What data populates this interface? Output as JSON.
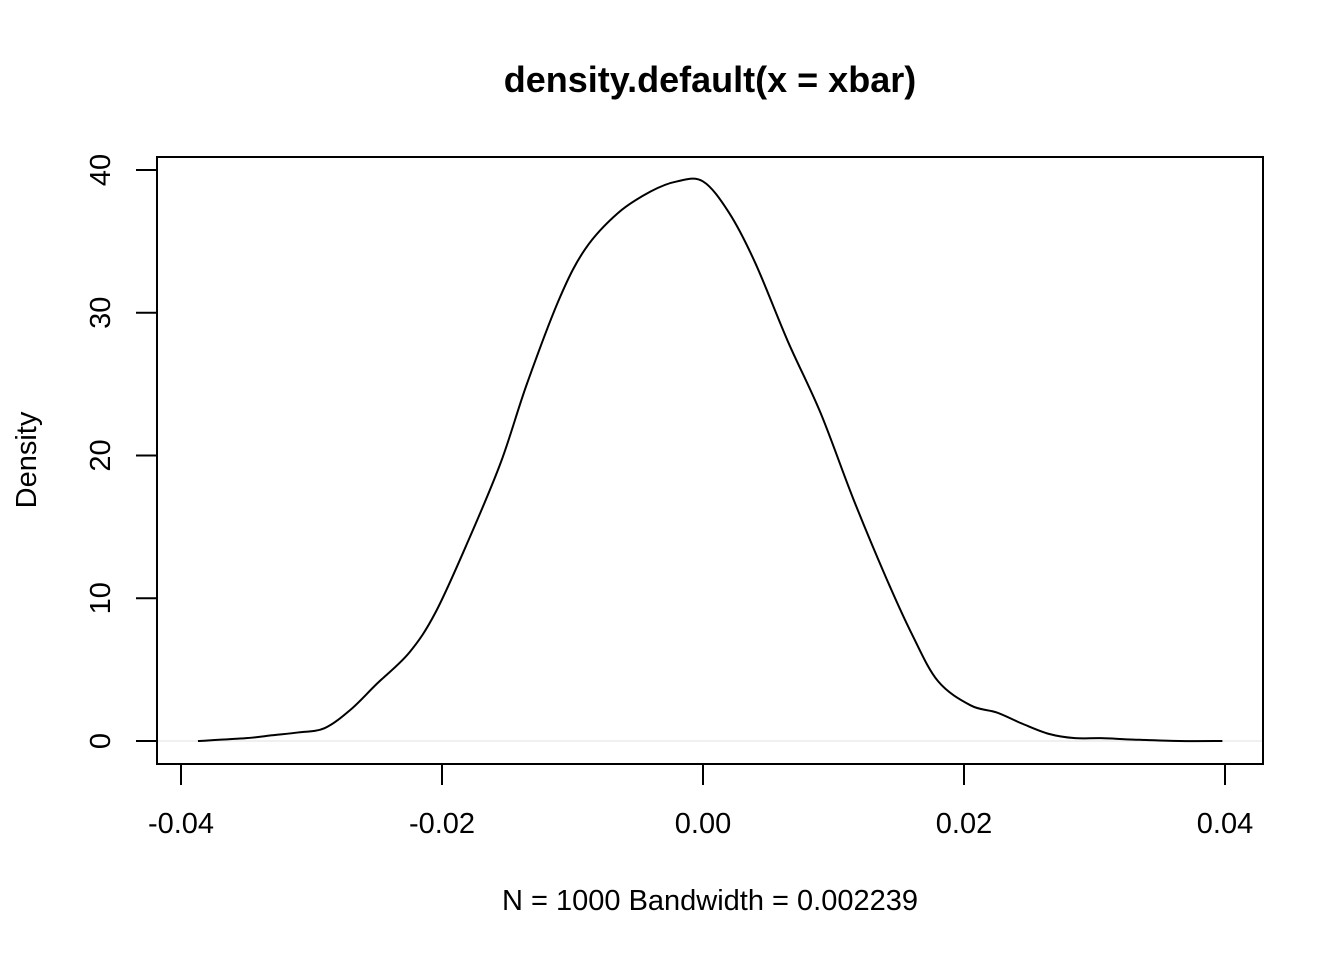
{
  "chart_data": {
    "type": "line",
    "title": "density.default(x = xbar)",
    "xlabel": "N = 1000   Bandwidth = 0.002239",
    "ylabel": "Density",
    "xlim": [
      -0.04,
      0.04
    ],
    "ylim": [
      0,
      40
    ],
    "xticks": [
      -0.04,
      -0.02,
      0.0,
      0.02,
      0.04
    ],
    "xtick_labels": [
      "-0.04",
      "-0.02",
      "0.00",
      "0.02",
      "0.04"
    ],
    "yticks": [
      0,
      10,
      20,
      30,
      40
    ],
    "ytick_labels": [
      "0",
      "10",
      "20",
      "30",
      "40"
    ],
    "grid": false,
    "zero_line": true,
    "line_color": "#000000",
    "series": [
      {
        "x": [
          -0.0387,
          -0.035,
          -0.033,
          -0.031,
          -0.029,
          -0.027,
          -0.025,
          -0.0225,
          -0.0205,
          -0.018,
          -0.0155,
          -0.0135,
          -0.011,
          -0.009,
          -0.0065,
          -0.004,
          -0.002,
          0.0,
          0.002,
          0.004,
          0.0065,
          0.009,
          0.0115,
          0.014,
          0.016,
          0.018,
          0.0205,
          0.0225,
          0.0245,
          0.0265,
          0.0285,
          0.0305,
          0.033,
          0.0365,
          0.0398
        ],
        "y": [
          0.0,
          0.2,
          0.4,
          0.6,
          0.9,
          2.2,
          4.0,
          6.2,
          9.0,
          14.0,
          19.5,
          25.0,
          31.0,
          34.5,
          37.0,
          38.5,
          39.2,
          39.2,
          37.0,
          33.5,
          28.0,
          23.0,
          17.0,
          11.5,
          7.5,
          4.2,
          2.5,
          2.0,
          1.2,
          0.5,
          0.2,
          0.2,
          0.1,
          0.0,
          0.0
        ]
      }
    ]
  }
}
